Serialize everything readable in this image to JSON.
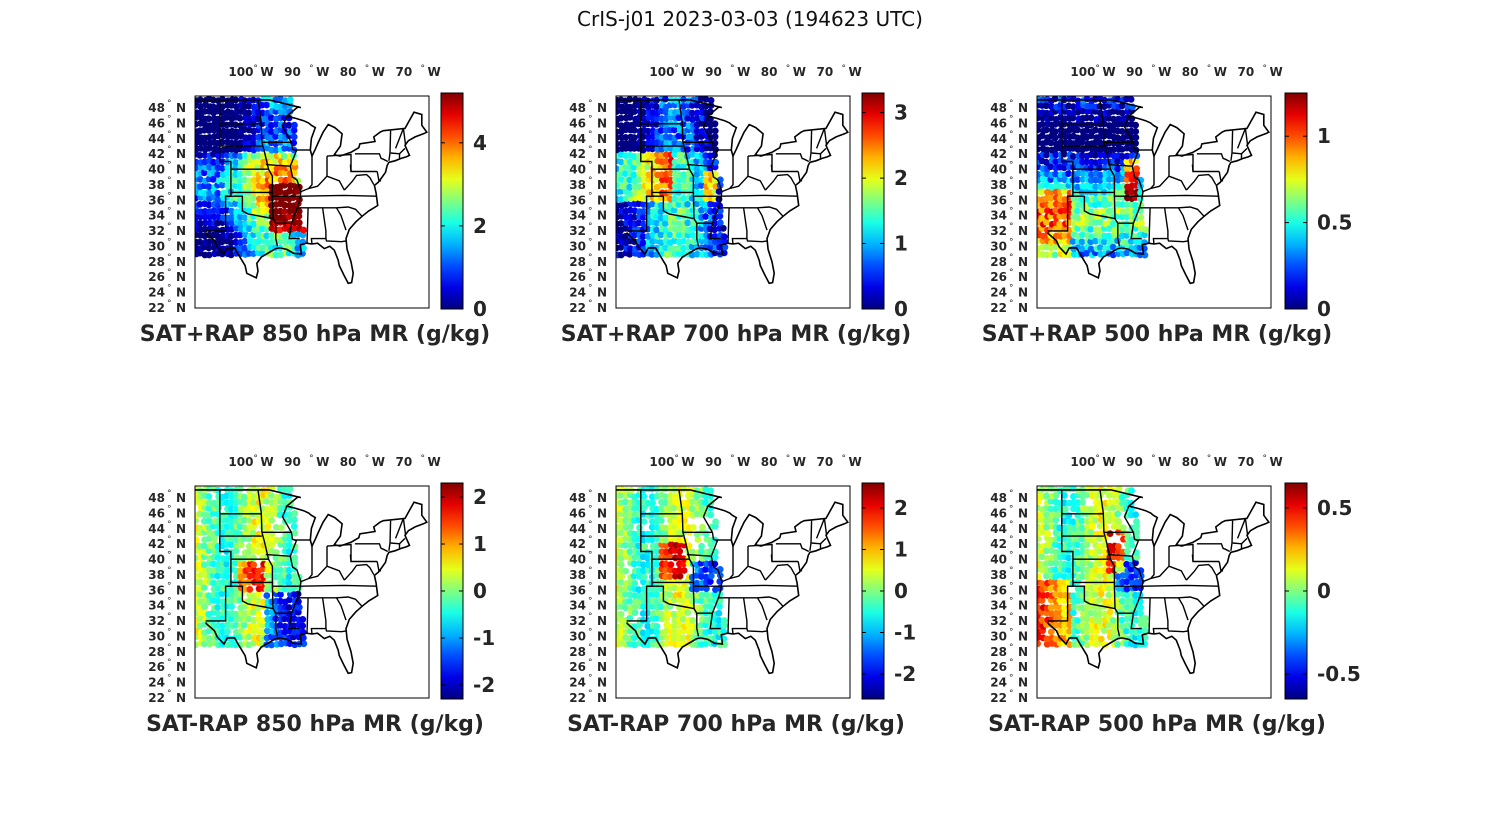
{
  "title": "CrIS-j01 2023-03-03 (194623 UTC)",
  "lon_ticks": [
    "100",
    "90",
    "80",
    "70"
  ],
  "lon_suffix": "W",
  "lat_ticks": [
    "48",
    "46",
    "44",
    "42",
    "40",
    "38",
    "36",
    "34",
    "32",
    "30",
    "28",
    "26",
    "24",
    "22"
  ],
  "lat_suffix": "N",
  "degree_symbol": "°",
  "panels": [
    {
      "id": "sum-850",
      "title": "SAT+RAP 850 hPa MR (g/kg)",
      "colorbar": {
        "min": 0,
        "max": 5.2,
        "ticks": [
          "0",
          "2",
          "4"
        ]
      }
    },
    {
      "id": "sum-700",
      "title": "SAT+RAP 700 hPa MR (g/kg)",
      "colorbar": {
        "min": 0,
        "max": 3.3,
        "ticks": [
          "0",
          "1",
          "2",
          "3"
        ]
      }
    },
    {
      "id": "sum-500",
      "title": "SAT+RAP 500 hPa MR (g/kg)",
      "colorbar": {
        "min": 0,
        "max": 1.25,
        "ticks": [
          "0",
          "0.5",
          "1"
        ]
      }
    },
    {
      "id": "diff-850",
      "title": "SAT-RAP 850 hPa MR (g/kg)",
      "colorbar": {
        "min": -2.3,
        "max": 2.3,
        "ticks": [
          "-2",
          "-1",
          "0",
          "1",
          "2"
        ]
      }
    },
    {
      "id": "diff-700",
      "title": "SAT-RAP 700 hPa MR (g/kg)",
      "colorbar": {
        "min": -2.6,
        "max": 2.6,
        "ticks": [
          "-2",
          "-1",
          "0",
          "1",
          "2"
        ]
      }
    },
    {
      "id": "diff-500",
      "title": "SAT-RAP 500 hPa MR (g/kg)",
      "colorbar": {
        "min": -0.65,
        "max": 0.65,
        "ticks": [
          "-0.5",
          "0",
          "0.5"
        ]
      }
    }
  ],
  "colors": {
    "frame": "#000000",
    "label": "#262626",
    "land_line": "#000000"
  }
}
